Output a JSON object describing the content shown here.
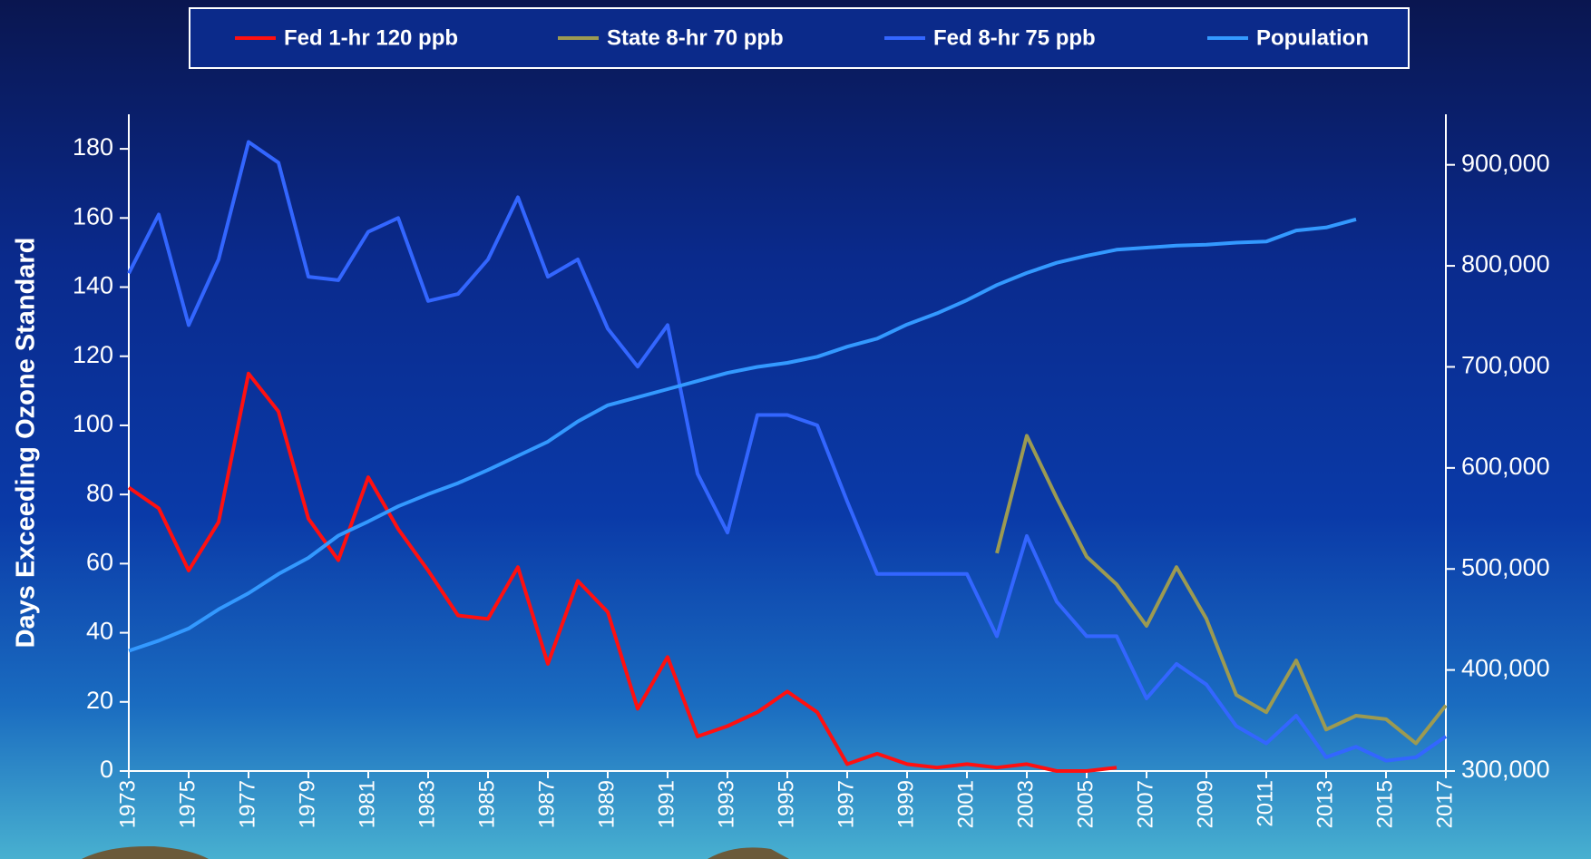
{
  "chart_data": {
    "type": "line",
    "ylabel": "Days Exceeding Ozone Standard",
    "x": [
      1973,
      1974,
      1975,
      1976,
      1977,
      1978,
      1979,
      1980,
      1981,
      1982,
      1983,
      1984,
      1985,
      1986,
      1987,
      1988,
      1989,
      1990,
      1991,
      1992,
      1993,
      1994,
      1995,
      1996,
      1997,
      1998,
      1999,
      2000,
      2001,
      2002,
      2003,
      2004,
      2005,
      2006,
      2007,
      2008,
      2009,
      2010,
      2011,
      2012,
      2013,
      2014,
      2015,
      2016,
      2017
    ],
    "xlim": [
      1973,
      2017
    ],
    "xticks": [
      1973,
      1975,
      1977,
      1979,
      1981,
      1983,
      1985,
      1987,
      1989,
      1991,
      1993,
      1995,
      1997,
      1999,
      2001,
      2003,
      2005,
      2007,
      2009,
      2011,
      2013,
      2015,
      2017
    ],
    "ylim": [
      0,
      190
    ],
    "yticks": [
      0,
      20,
      40,
      60,
      80,
      100,
      120,
      140,
      160,
      180
    ],
    "y2lim": [
      300000,
      950000
    ],
    "y2ticks": [
      {
        "value": 300000,
        "label": "300,000"
      },
      {
        "value": 400000,
        "label": "400,000"
      },
      {
        "value": 500000,
        "label": "500,000"
      },
      {
        "value": 600000,
        "label": "600,000"
      },
      {
        "value": 700000,
        "label": "700,000"
      },
      {
        "value": 800000,
        "label": "800,000"
      },
      {
        "value": 900000,
        "label": "900,000"
      }
    ],
    "legend": "top",
    "series": [
      {
        "name": "Fed 1-hr 120 ppb",
        "color": "#ff1010",
        "values": [
          82,
          76,
          58,
          72,
          115,
          104,
          73,
          61,
          85,
          70,
          58,
          45,
          44,
          59,
          31,
          55,
          46,
          18,
          33,
          10,
          13,
          17,
          23,
          17,
          2,
          5,
          2,
          1,
          2,
          1,
          2,
          0,
          0,
          1,
          null,
          null,
          null,
          null,
          null,
          null,
          null,
          null,
          null,
          null,
          null
        ]
      },
      {
        "name": "State 8-hr 70 ppb",
        "color": "#9c9a52",
        "values": [
          null,
          null,
          null,
          null,
          null,
          null,
          null,
          null,
          null,
          null,
          null,
          null,
          null,
          null,
          null,
          null,
          null,
          null,
          null,
          null,
          null,
          null,
          null,
          null,
          null,
          null,
          null,
          null,
          null,
          63,
          97,
          79,
          62,
          54,
          42,
          59,
          44,
          22,
          17,
          32,
          12,
          16,
          15,
          8,
          19
        ]
      },
      {
        "name": "Fed 8-hr 75 ppb",
        "color": "#3366ff",
        "values": [
          144,
          161,
          129,
          148,
          182,
          176,
          143,
          142,
          156,
          160,
          136,
          138,
          148,
          166,
          143,
          148,
          128,
          117,
          129,
          86,
          69,
          103,
          103,
          100,
          78,
          57,
          57,
          57,
          57,
          39,
          68,
          49,
          39,
          39,
          21,
          31,
          25,
          13,
          8,
          16,
          4,
          7,
          3,
          4,
          10
        ]
      },
      {
        "name": "Population",
        "color": "#3399ff",
        "axis": "y2",
        "values": [
          419000,
          429000,
          441000,
          460000,
          476000,
          495000,
          511000,
          533000,
          547000,
          562000,
          574000,
          585000,
          598000,
          612000,
          626000,
          646000,
          662000,
          670000,
          678000,
          686000,
          694000,
          700000,
          704000,
          710000,
          720000,
          728000,
          742000,
          753000,
          766000,
          781000,
          793000,
          803000,
          810000,
          816000,
          818000,
          820000,
          821000,
          823000,
          824000,
          835000,
          838000,
          846000,
          null,
          null,
          null
        ]
      }
    ]
  }
}
